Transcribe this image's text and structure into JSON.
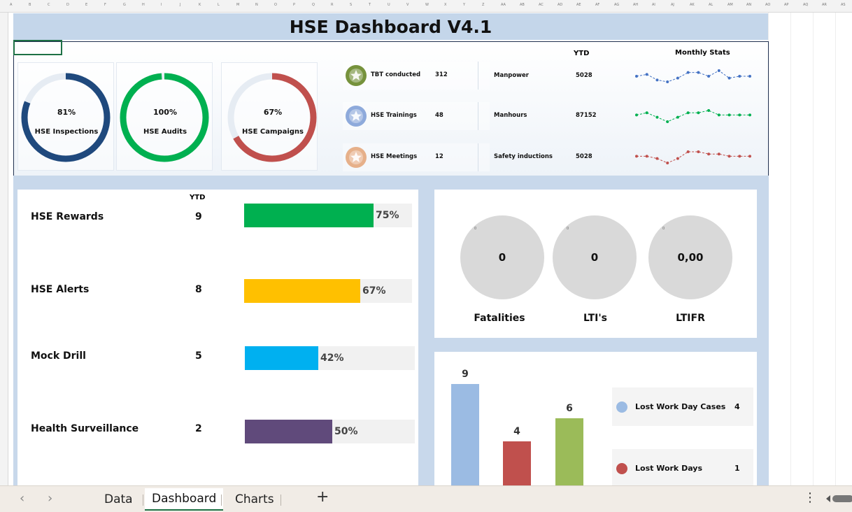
{
  "title": "HSE Dashboard V4.1",
  "gauges": [
    {
      "pct_label": "81%",
      "value": 81,
      "label": "HSE Inspections",
      "color": "#1f497d"
    },
    {
      "pct_label": "100%",
      "value": 100,
      "label": "HSE Audits",
      "color": "#00b050"
    },
    {
      "pct_label": "67%",
      "value": 67,
      "label": "HSE Campaigns",
      "color": "#c0504d"
    }
  ],
  "kpis": [
    {
      "label": "TBT conducted",
      "value": "312",
      "medal_color": "#76923c",
      "icon": "star-medal-icon"
    },
    {
      "label": "HSE Trainings",
      "value": "48",
      "medal_color": "#8eaadb",
      "icon": "star-medal-icon"
    },
    {
      "label": "HSE Meetings",
      "value": "12",
      "medal_color": "#e6b08a",
      "icon": "star-medal-icon"
    }
  ],
  "stats_header": {
    "ytd": "YTD",
    "monthly": "Monthly Stats"
  },
  "stats": [
    {
      "label": "Manpower",
      "value": "5028",
      "color": "#4472c4",
      "spark": [
        6,
        7,
        4,
        3,
        5,
        8,
        8,
        6,
        9,
        5,
        6,
        6
      ]
    },
    {
      "label": "Manhours",
      "value": "87152",
      "color": "#00b050",
      "spark": [
        5,
        6,
        4,
        2,
        4,
        6,
        6,
        7,
        5,
        5,
        5,
        5
      ]
    },
    {
      "label": "Safety inductions",
      "value": "5028",
      "color": "#c0504d",
      "spark": [
        5,
        5,
        4,
        2,
        4,
        7,
        7,
        6,
        6,
        5,
        5,
        5
      ]
    }
  ],
  "activities": {
    "ytd_header": "YTD",
    "items": [
      {
        "label": "HSE Rewards",
        "value": "9",
        "pct_label": "75%",
        "pct": 75,
        "color": "#00b050"
      },
      {
        "label": "HSE Alerts",
        "value": "8",
        "pct_label": "67%",
        "pct": 67,
        "color": "#ffc000"
      },
      {
        "label": "Mock Drill",
        "value": "5",
        "pct_label": "42%",
        "pct": 42,
        "color": "#00b0f0"
      },
      {
        "label": "Health Surveillance",
        "value": "2",
        "pct_label": "50%",
        "pct": 50,
        "color": "#604a7b"
      }
    ]
  },
  "incidents": [
    {
      "value": "0",
      "label": "Fatalities",
      "tiny": "0"
    },
    {
      "value": "0",
      "label": "LTI's",
      "tiny": "0"
    },
    {
      "value": "0,00",
      "label": "LTIFR",
      "tiny": "0"
    }
  ],
  "chart_data": {
    "type": "bar",
    "values": [
      9,
      4,
      6
    ],
    "colors": [
      "#9bbbe3",
      "#c0504d",
      "#9bbb59"
    ],
    "title": "",
    "xlabel": "",
    "ylabel": "",
    "legend": [
      {
        "label": "Lost Work Day Cases",
        "value": "4",
        "color": "#9bbbe3"
      },
      {
        "label": "Lost Work Days",
        "value": "1",
        "color": "#c0504d"
      }
    ]
  },
  "tabs": [
    "Data",
    "Dashboard",
    "Charts"
  ],
  "active_tab": "Dashboard",
  "add_tab_symbol": "+",
  "more_symbol": "⋮",
  "nav": {
    "prev": "‹",
    "next": "›"
  },
  "column_letters": [
    "A",
    "B",
    "C",
    "D",
    "E",
    "F",
    "G",
    "H",
    "I",
    "J",
    "K",
    "L",
    "M",
    "N",
    "O",
    "P",
    "Q",
    "R",
    "S",
    "T",
    "U",
    "V",
    "W",
    "X",
    "Y",
    "Z",
    "AA",
    "AB",
    "AC",
    "AD",
    "AE",
    "AF",
    "AG",
    "AH",
    "AI",
    "AJ",
    "AK",
    "AL",
    "AM",
    "AN",
    "AO",
    "AP",
    "AQ",
    "AR",
    "AS"
  ]
}
